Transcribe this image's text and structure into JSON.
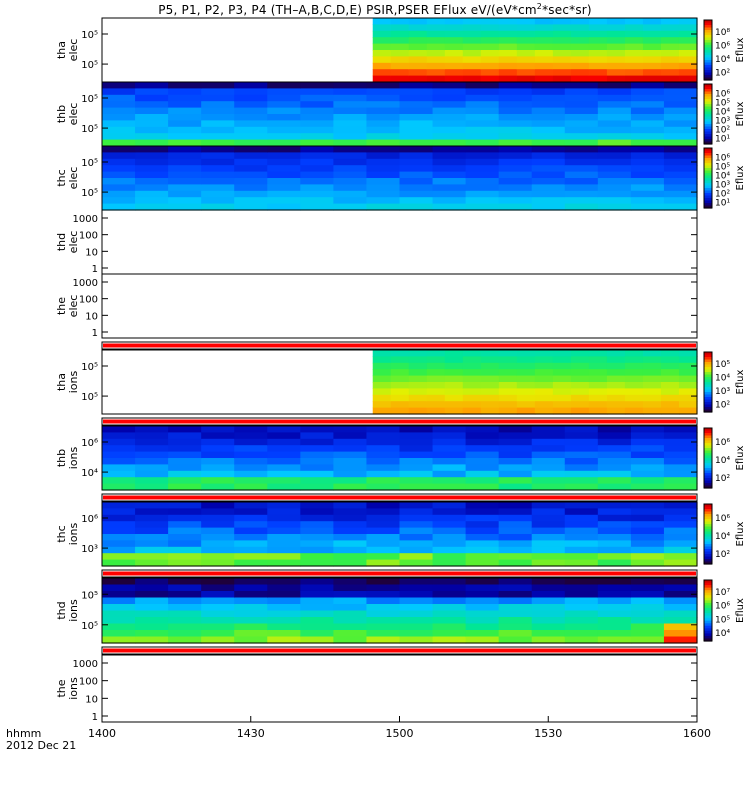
{
  "title": {
    "prefix": "P5, P1, P2, P3, P4 (TH–A,B,C,D,E) PSIR,PSER EFlux eV/(eV*cm",
    "sup": "2",
    "suffix": "*sec*sr)"
  },
  "x_axis": {
    "ticks": [
      "1400",
      "1430",
      "1500",
      "1530",
      "1600"
    ],
    "title_line1": "hhmm",
    "title_line2": "2012 Dec 21"
  },
  "colors": {
    "flag_red": "#ff0000",
    "axis": "#000000"
  },
  "colorbar_label": "Eflux",
  "chart_data": {
    "type": "heatmap",
    "title": "P5, P1, P2, P3, P4 (TH-A,B,C,D,E) PSIR,PSER EFlux eV/(eV*cm^2*sec*sr)",
    "xlabel": "hhmm 2012 Dec 21",
    "x_range": [
      "14:00",
      "16:00"
    ],
    "panels": [
      {
        "name": "tha-elec",
        "label": [
          "tha",
          "elec"
        ],
        "yticks": [
          "10⁵",
          "10⁵"
        ],
        "data_start_frac": 0.455,
        "colorbar": [
          "10²",
          "10⁴",
          "10⁶",
          "10⁸"
        ],
        "flag": false,
        "empty": false
      },
      {
        "name": "thb-elec",
        "label": [
          "thb",
          "elec"
        ],
        "yticks": [
          "10⁵",
          "10⁵"
        ],
        "data_start_frac": 0.0,
        "colorbar": [
          "10¹",
          "10²",
          "10³",
          "10⁴",
          "10⁵",
          "10⁶"
        ],
        "flag": false,
        "empty": false
      },
      {
        "name": "thc-elec",
        "label": [
          "thc",
          "elec"
        ],
        "yticks": [
          "10⁵",
          "10⁵"
        ],
        "data_start_frac": 0.0,
        "colorbar": [
          "10¹",
          "10²",
          "10³",
          "10⁴",
          "10⁵",
          "10⁶"
        ],
        "flag": false,
        "empty": false
      },
      {
        "name": "thd-elec",
        "label": [
          "thd",
          "elec"
        ],
        "yticks": [
          "1000",
          "100",
          "10",
          "1"
        ],
        "empty": true,
        "flag": false
      },
      {
        "name": "the-elec",
        "label": [
          "the",
          "elec"
        ],
        "yticks": [
          "1000",
          "100",
          "10",
          "1"
        ],
        "empty": true,
        "flag": true
      },
      {
        "name": "tha-ions",
        "label": [
          "tha",
          "ions"
        ],
        "yticks": [
          "10⁵",
          "10⁵"
        ],
        "data_start_frac": 0.455,
        "colorbar": [
          "10²",
          "10³",
          "10⁴",
          "10⁵"
        ],
        "flag": true,
        "empty": false
      },
      {
        "name": "thb-ions",
        "label": [
          "thb",
          "ions"
        ],
        "yticks": [
          "10⁶",
          "10⁴"
        ],
        "data_start_frac": 0.0,
        "colorbar": [
          "10²",
          "10⁴",
          "10⁶"
        ],
        "flag": true,
        "empty": false
      },
      {
        "name": "thc-ions",
        "label": [
          "thc",
          "ions"
        ],
        "yticks": [
          "10⁶",
          "10³"
        ],
        "data_start_frac": 0.0,
        "colorbar": [
          "10²",
          "10⁴",
          "10⁶"
        ],
        "flag": true,
        "empty": false
      },
      {
        "name": "thd-ions",
        "label": [
          "thd",
          "ions"
        ],
        "yticks": [
          "10⁵",
          "10⁵"
        ],
        "data_start_frac": 0.0,
        "colorbar": [
          "10⁴",
          "10⁵",
          "10⁶",
          "10⁷"
        ],
        "flag": true,
        "empty": false
      },
      {
        "name": "the-ions",
        "label": [
          "the",
          "ions"
        ],
        "yticks": [
          "1000",
          "100",
          "10",
          "1"
        ],
        "empty": true,
        "flag": false
      }
    ]
  }
}
